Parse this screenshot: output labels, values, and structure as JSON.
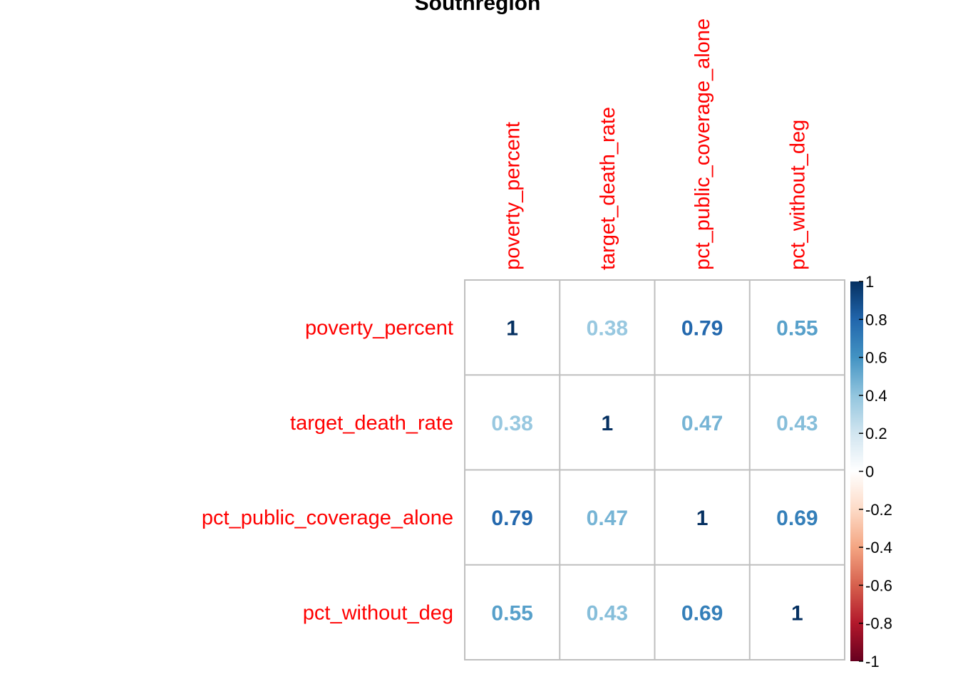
{
  "chart_data": {
    "type": "heatmap",
    "title": "Southregion",
    "variables": [
      "poverty_percent",
      "target_death_rate",
      "pct_public_coverage_alone",
      "pct_without_deg"
    ],
    "matrix": [
      [
        1,
        0.38,
        0.79,
        0.55
      ],
      [
        0.38,
        1,
        0.47,
        0.43
      ],
      [
        0.79,
        0.47,
        1,
        0.69
      ],
      [
        0.55,
        0.43,
        0.69,
        1
      ]
    ],
    "cell_labels": [
      [
        "1",
        "0.38",
        "0.79",
        "0.55"
      ],
      [
        "0.38",
        "1",
        "0.47",
        "0.43"
      ],
      [
        "0.79",
        "0.47",
        "1",
        "0.69"
      ],
      [
        "0.55",
        "0.43",
        "0.69",
        "1"
      ]
    ],
    "colorbar": {
      "range": [
        -1,
        1
      ],
      "ticks": [
        "1",
        "0.8",
        "0.6",
        "0.4",
        "0.2",
        "0",
        "-0.2",
        "-0.4",
        "-0.6",
        "-0.8",
        "-1"
      ],
      "tick_values": [
        1,
        0.8,
        0.6,
        0.4,
        0.2,
        0,
        -0.2,
        -0.4,
        -0.6,
        -0.8,
        -1
      ]
    },
    "colors": {
      "variable_label": "#ff0000",
      "grid": "#bfbfbf",
      "scale": [
        "#67001f",
        "#b2182b",
        "#d6604d",
        "#f4a582",
        "#fddbc7",
        "#ffffff",
        "#d1e5f0",
        "#92c5de",
        "#4393c3",
        "#2166ac",
        "#053061"
      ]
    }
  }
}
